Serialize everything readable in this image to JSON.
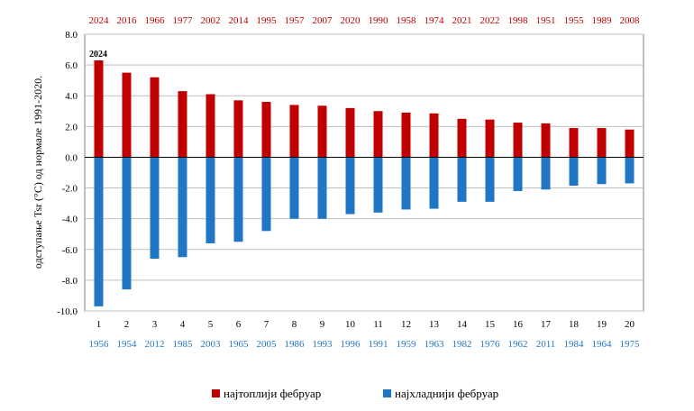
{
  "chart_data": {
    "type": "bar",
    "categories": [
      "1",
      "2",
      "3",
      "4",
      "5",
      "6",
      "7",
      "8",
      "9",
      "10",
      "11",
      "12",
      "13",
      "14",
      "15",
      "16",
      "17",
      "18",
      "19",
      "20"
    ],
    "series": [
      {
        "name": "најтоплији фебруар",
        "color": "#c00000",
        "values": [
          6.3,
          5.5,
          5.2,
          4.3,
          4.1,
          3.7,
          3.6,
          3.4,
          3.35,
          3.2,
          3.0,
          2.9,
          2.85,
          2.5,
          2.45,
          2.25,
          2.2,
          1.9,
          1.9,
          1.8
        ],
        "years": [
          "2024",
          "2016",
          "1966",
          "1977",
          "2002",
          "2014",
          "1995",
          "1957",
          "2007",
          "2020",
          "1990",
          "1958",
          "1974",
          "2021",
          "2022",
          "1998",
          "1951",
          "1955",
          "1989",
          "2008"
        ]
      },
      {
        "name": "најхладнији фебруар",
        "color": "#1f77c4",
        "values": [
          -9.7,
          -8.6,
          -6.6,
          -6.5,
          -5.6,
          -5.5,
          -4.8,
          -4.0,
          -4.0,
          -3.7,
          -3.6,
          -3.4,
          -3.35,
          -2.9,
          -2.9,
          -2.2,
          -2.1,
          -1.85,
          -1.75,
          -1.7
        ],
        "years": [
          "1956",
          "1954",
          "2012",
          "1985",
          "2003",
          "1965",
          "2005",
          "1986",
          "1993",
          "1996",
          "1991",
          "1959",
          "1963",
          "1982",
          "1976",
          "1962",
          "2011",
          "1984",
          "1964",
          "1975"
        ]
      }
    ],
    "ylabel": "одступање Tsr (°C)  од  нормале 1991-2020.",
    "ylim": [
      -10.0,
      8.0
    ],
    "yticks": [
      "8.0",
      "6.0",
      "4.0",
      "2.0",
      "0.0",
      "-2.0",
      "-4.0",
      "-6.0",
      "-8.0",
      "-10.0"
    ],
    "annotation": "2024",
    "grid": true,
    "legend_position": "bottom"
  }
}
